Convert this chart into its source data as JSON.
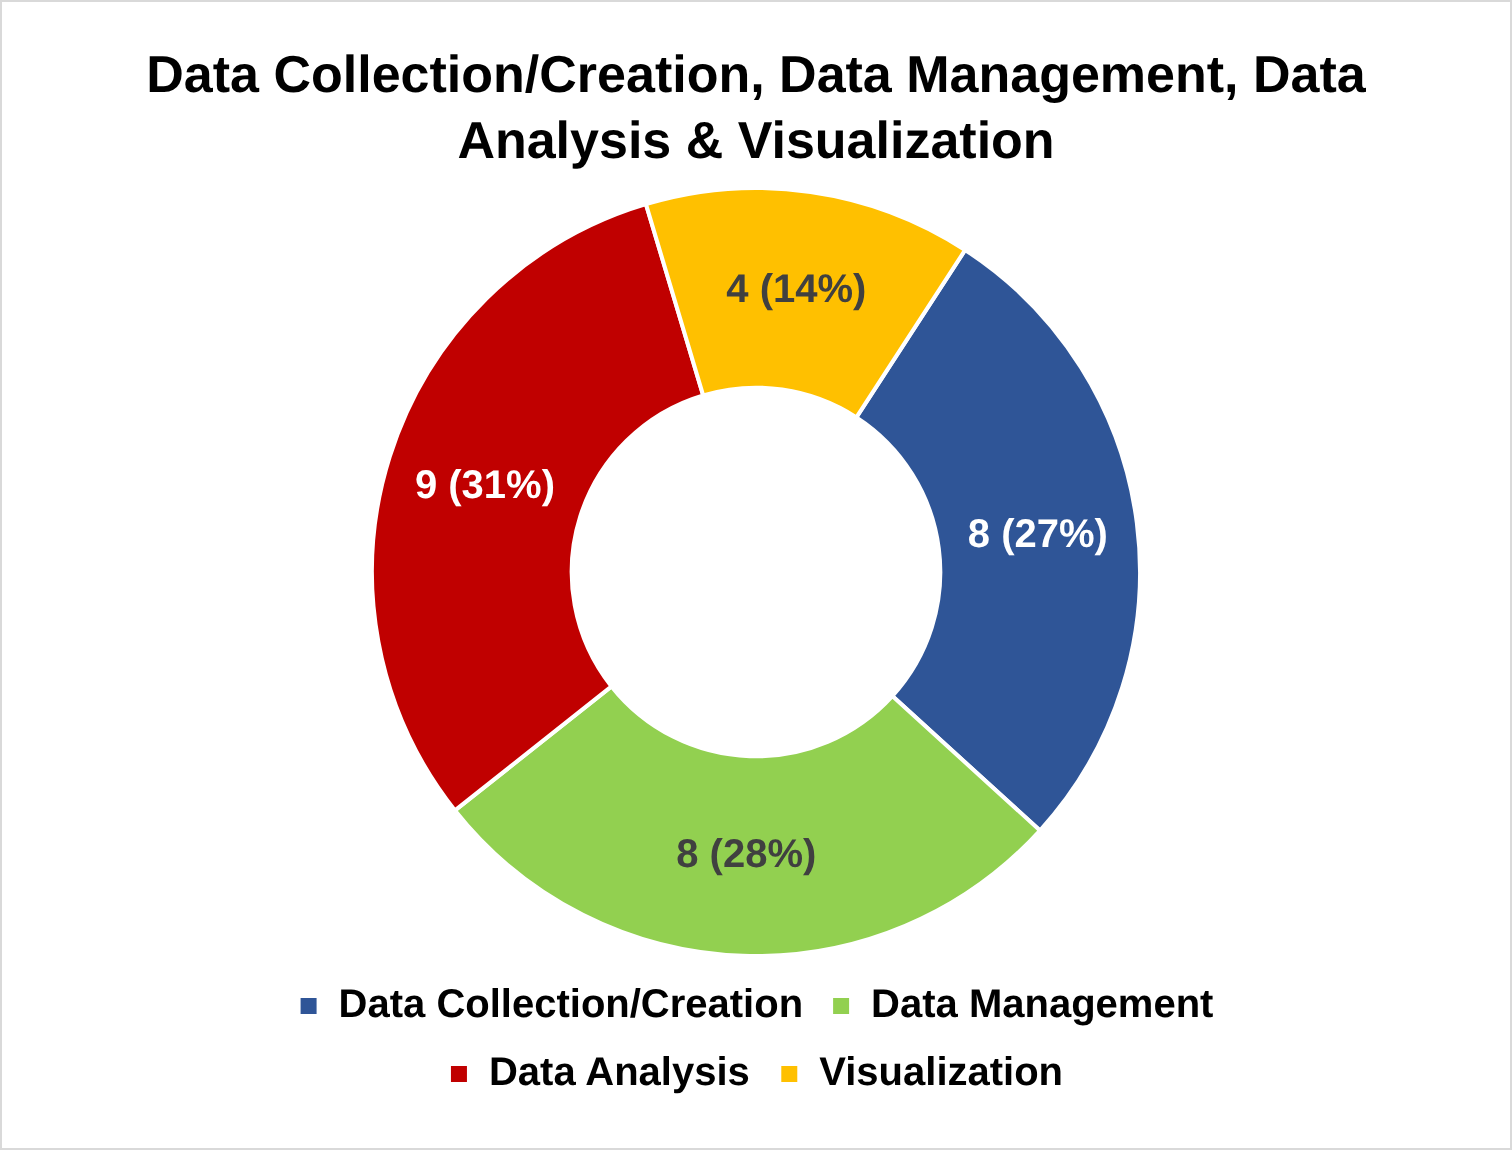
{
  "chart_data": {
    "type": "donut",
    "title": "Data Collection/Creation, Data Management, Data Analysis & Visualization",
    "categories": [
      "Data Collection/Creation",
      "Data Management",
      "Data Analysis",
      "Visualization"
    ],
    "values": [
      8,
      8,
      9,
      4
    ],
    "colors": [
      "#2f5597",
      "#92d050",
      "#c00000",
      "#ffc000"
    ],
    "value_labels": [
      "8 (27%)",
      "8 (28%)",
      "9 (31%)",
      "4 (14%)"
    ],
    "legend": "bottom"
  }
}
